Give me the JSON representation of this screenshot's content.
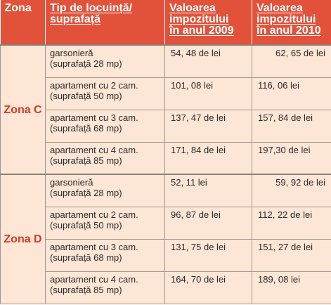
{
  "headers": {
    "zona": "Zona",
    "tip_line1": "Tip de locuință/",
    "tip_line2": "suprafață",
    "val2009_line1": "Valoarea",
    "val2009_line2": "impozitului",
    "val2009_line3": "în anul 2009",
    "val2010_line1": "Valoarea",
    "val2010_line2": "impozitului",
    "val2010_line3": "în anul 2010"
  },
  "zones": [
    {
      "name": "Zona C",
      "rows": [
        {
          "type": "garsonieră",
          "area": "(suprafață 28 mp)",
          "v2009": "54, 48 de lei",
          "v2010": "62, 65 de lei"
        },
        {
          "type": "apartament cu 2 cam.",
          "area": "(suprafață 50 mp)",
          "v2009": "101, 08 lei",
          "v2010": "116, 06 lei"
        },
        {
          "type": "apartament cu 3 cam.",
          "area": "(suprafață 68 mp)",
          "v2009": "137, 47 de lei",
          "v2010": "157, 84 de lei"
        },
        {
          "type": "apartament cu 4 cam.",
          "area": "(suprafață 85 mp)",
          "v2009": "171, 84 de lei",
          "v2010": "197,30 de lei"
        }
      ]
    },
    {
      "name": "Zona D",
      "rows": [
        {
          "type": "garsonieră",
          "area": "(suprafață 28 mp)",
          "v2009": "52, 11 lei",
          "v2010": "59, 92 de lei"
        },
        {
          "type": "apartament cu 2 cam.",
          "area": "(suprafață 50 mp)",
          "v2009": "96, 87 de lei",
          "v2010": "112, 22 de lei"
        },
        {
          "type": "apartament cu 3 cam.",
          "area": "(suprafață 68 mp)",
          "v2009": "131, 75 de lei",
          "v2010": "151, 27 de lei"
        },
        {
          "type": "apartament cu 4 cam.",
          "area": "(suprafață 85 mp)",
          "v2009": "164, 70 de lei",
          "v2010": "189, 08 lei"
        }
      ]
    }
  ],
  "colors": {
    "header_bg": "#e2523b",
    "cell_bg": "#fde6d6",
    "zone_text": "#d43a22"
  }
}
